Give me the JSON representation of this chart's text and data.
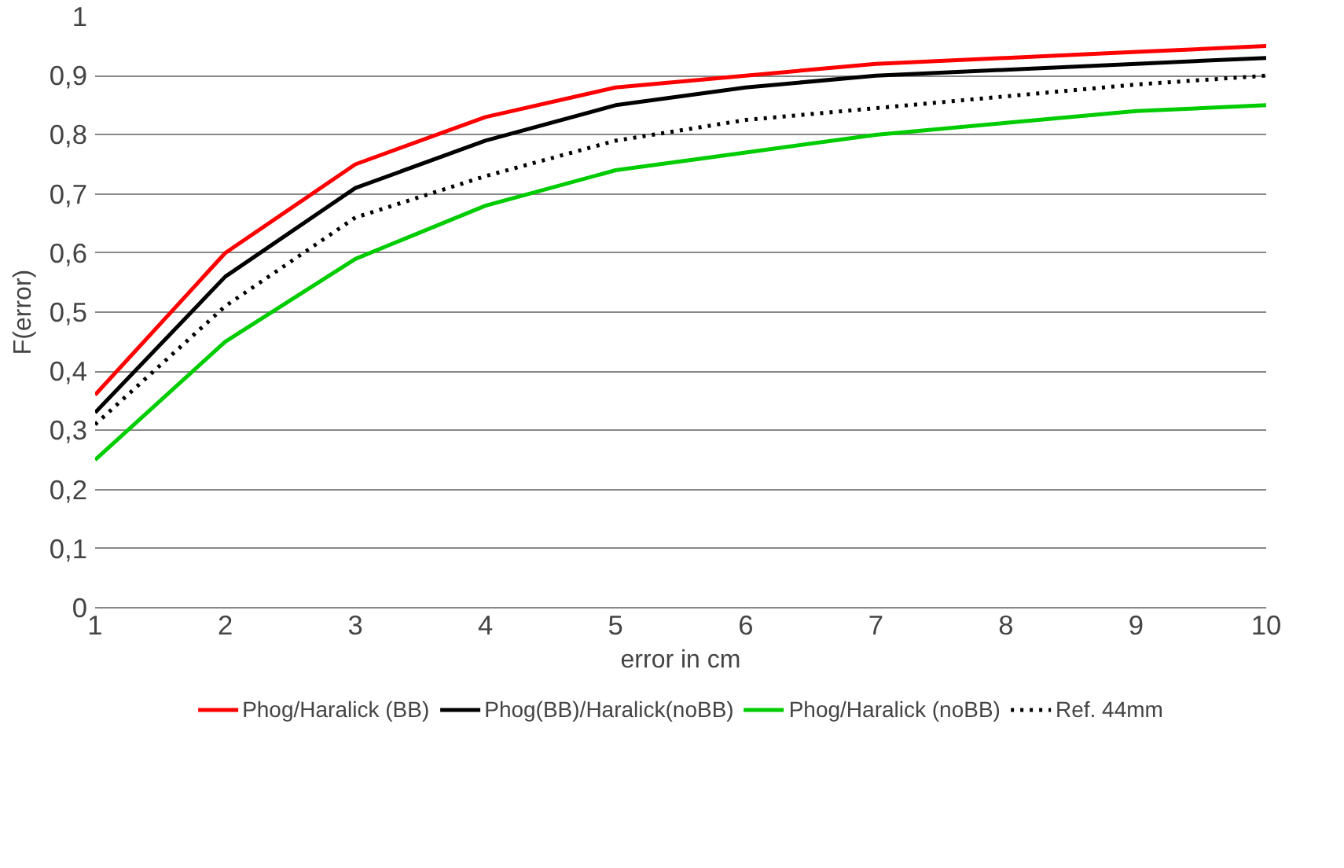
{
  "chart_data": {
    "type": "line",
    "xlabel": "error in cm",
    "ylabel": "F(error)",
    "x": [
      1,
      2,
      3,
      4,
      5,
      6,
      7,
      8,
      9,
      10
    ],
    "xlim": [
      1,
      10
    ],
    "xticks": [
      1,
      2,
      3,
      4,
      5,
      6,
      7,
      8,
      9,
      10
    ],
    "ylim": [
      0,
      1
    ],
    "yticks": [
      0,
      {
        "value": 0.1,
        "label": "0,1"
      },
      {
        "value": 0.2,
        "label": "0,2"
      },
      {
        "value": 0.3,
        "label": "0,3"
      },
      {
        "value": 0.4,
        "label": "0,4"
      },
      {
        "value": 0.5,
        "label": "0,5"
      },
      {
        "value": 0.6,
        "label": "0,6"
      },
      {
        "value": 0.7,
        "label": "0,7"
      },
      {
        "value": 0.8,
        "label": "0,8"
      },
      {
        "value": 0.9,
        "label": "0,9"
      },
      1
    ],
    "grid": "y",
    "legend": "bottom",
    "marker": "none",
    "series": [
      {
        "name": "Phog/Haralick (BB)",
        "color": "#ff0000",
        "values": [
          0.36,
          0.6,
          0.75,
          0.83,
          0.88,
          0.9,
          0.92,
          0.93,
          0.94,
          0.95
        ]
      },
      {
        "name": "Phog(BB)/Haralick(noBB)",
        "color": "#000000",
        "values": [
          0.33,
          0.56,
          0.71,
          0.79,
          0.85,
          0.88,
          0.9,
          0.91,
          0.92,
          0.93
        ]
      },
      {
        "name": "Phog/Haralick (noBB)",
        "color": "#00cc00",
        "values": [
          0.25,
          0.45,
          0.59,
          0.68,
          0.74,
          0.77,
          0.8,
          0.82,
          0.84,
          0.85
        ]
      },
      {
        "name": "Ref. 44mm",
        "color": "#000000",
        "line_style": "dotted",
        "values": [
          0.31,
          0.51,
          0.66,
          0.73,
          0.79,
          0.825,
          0.845,
          0.865,
          0.885,
          0.9
        ]
      }
    ]
  }
}
